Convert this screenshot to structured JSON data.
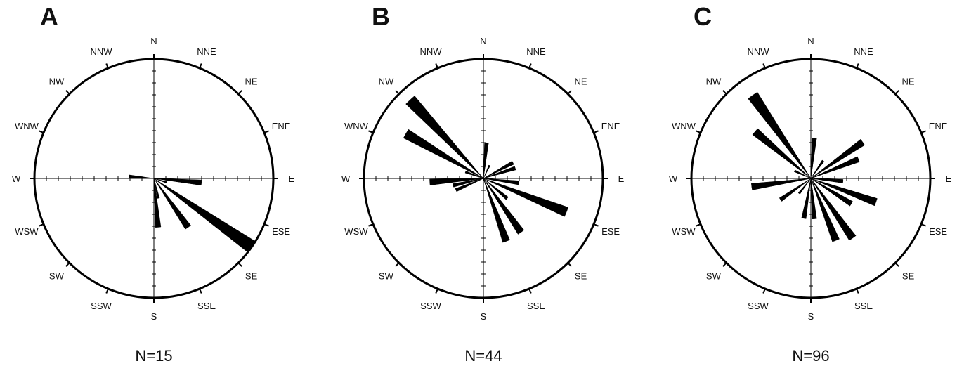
{
  "chart_data": [
    {
      "type": "rose",
      "panel": "A",
      "n_label": "N=15",
      "directions": [
        "N",
        "NNE",
        "NE",
        "ENE",
        "E",
        "ESE",
        "SE",
        "SSE",
        "S",
        "SSW",
        "SW",
        "WSW",
        "W",
        "WNW",
        "NW",
        "NNW"
      ],
      "rmax": 10,
      "petals": [
        {
          "az": 95,
          "value": 4.0
        },
        {
          "az": 107,
          "value": 1.1
        },
        {
          "az": 125,
          "value": 10.0
        },
        {
          "az": 145,
          "value": 5.0
        },
        {
          "az": 167,
          "value": 1.7
        },
        {
          "az": 175,
          "value": 4.1
        },
        {
          "az": 275,
          "value": 2.1
        }
      ]
    },
    {
      "type": "rose",
      "panel": "B",
      "n_label": "N=44",
      "directions": [
        "N",
        "NNE",
        "NE",
        "ENE",
        "E",
        "ESE",
        "SE",
        "SSE",
        "S",
        "SSW",
        "SW",
        "WSW",
        "W",
        "WNW",
        "NW",
        "NNW"
      ],
      "rmax": 10,
      "petals": [
        {
          "az": 5,
          "value": 3.0
        },
        {
          "az": 25,
          "value": 1.2
        },
        {
          "az": 62,
          "value": 2.8
        },
        {
          "az": 72,
          "value": 2.8
        },
        {
          "az": 97,
          "value": 3.0
        },
        {
          "az": 112,
          "value": 7.5
        },
        {
          "az": 145,
          "value": 5.5
        },
        {
          "az": 160,
          "value": 5.6
        },
        {
          "az": 130,
          "value": 2.6
        },
        {
          "az": 247,
          "value": 2.5
        },
        {
          "az": 257,
          "value": 2.6
        },
        {
          "az": 266,
          "value": 4.5
        },
        {
          "az": 300,
          "value": 7.5
        },
        {
          "az": 317,
          "value": 9.0
        },
        {
          "az": 290,
          "value": 1.6
        }
      ]
    },
    {
      "type": "rose",
      "panel": "C",
      "n_label": "N=96",
      "directions": [
        "N",
        "NNE",
        "NE",
        "ENE",
        "E",
        "ESE",
        "SE",
        "SSE",
        "S",
        "SSW",
        "SW",
        "WSW",
        "W",
        "WNW",
        "NW",
        "NNW"
      ],
      "rmax": 10,
      "petals": [
        {
          "az": 5,
          "value": 3.4
        },
        {
          "az": 35,
          "value": 1.8
        },
        {
          "az": 55,
          "value": 5.3
        },
        {
          "az": 68,
          "value": 4.3
        },
        {
          "az": 95,
          "value": 2.7
        },
        {
          "az": 110,
          "value": 5.8
        },
        {
          "az": 122,
          "value": 4.0
        },
        {
          "az": 145,
          "value": 6.1
        },
        {
          "az": 158,
          "value": 5.6
        },
        {
          "az": 175,
          "value": 3.4
        },
        {
          "az": 190,
          "value": 3.4
        },
        {
          "az": 235,
          "value": 3.1
        },
        {
          "az": 262,
          "value": 5.0
        },
        {
          "az": 310,
          "value": 6.1
        },
        {
          "az": 325,
          "value": 8.5
        },
        {
          "az": 218,
          "value": 1.6
        },
        {
          "az": 295,
          "value": 1.5
        }
      ]
    }
  ]
}
